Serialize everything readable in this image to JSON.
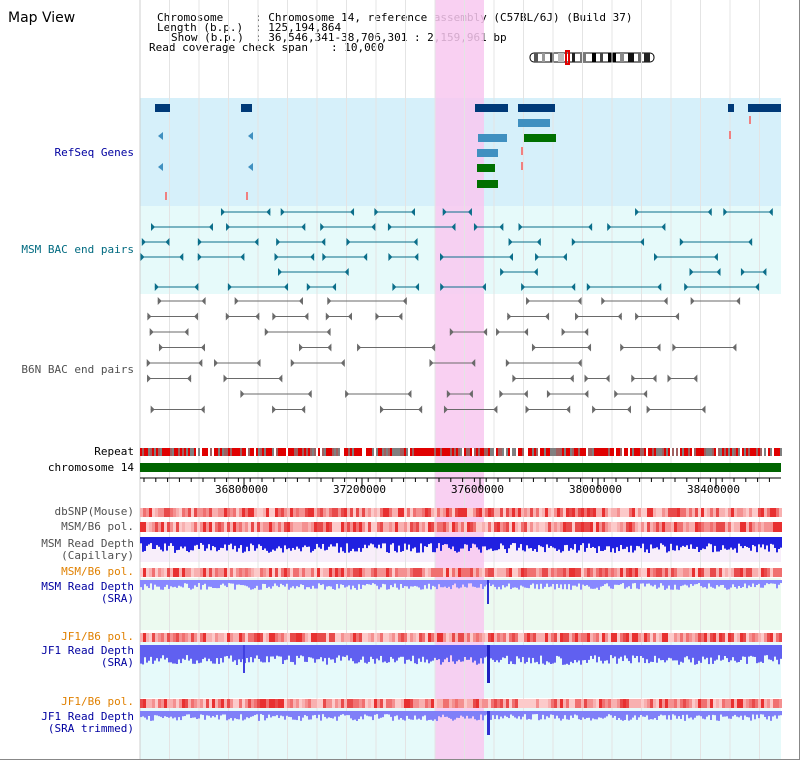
{
  "title": "Map View",
  "info": {
    "chromosome_label": "Chromosome",
    "chromosome_value": ": Chromosome 14, reference assembly (C57BL/6J) (Build 37)",
    "length_label": "Length (b.p.)",
    "length_value": ": 125,194,864",
    "show_label": "Show (b.p.)",
    "show_value": ": 36,546,341-38,706,301 : 2,159,961 bp",
    "coverage_label": "Read coverage check span",
    "coverage_value": ": 10,000"
  },
  "tracks": {
    "refseq": "RefSeq Genes",
    "msm_bac": "MSM BAC end pairs",
    "b6n_bac": "B6N BAC end pairs",
    "repeat": "Repeat",
    "chromosome": "chromosome 14",
    "dbsnp": "dbSNP(Mouse)",
    "msm_b6_pol": "MSM/B6 pol.",
    "msm_depth_cap_1": "MSM Read Depth",
    "msm_depth_cap_2": "(Capillary)",
    "msm_b6_pol_2": "MSM/B6 pol.",
    "msm_depth_sra_1": "MSM Read Depth",
    "msm_depth_sra_2": "(SRA)",
    "jf1_b6_pol": "JF1/B6 pol.",
    "jf1_depth_sra_1": "JF1 Read Depth",
    "jf1_depth_sra_2": "(SRA)",
    "jf1_b6_pol_2": "JF1/B6 pol.",
    "jf1_depth_trim_1": "JF1 Read Depth",
    "jf1_depth_trim_2": "(SRA trimmed)"
  },
  "axis": {
    "ticks": [
      "36800000",
      "37200000",
      "37600000",
      "38000000",
      "38400000"
    ]
  },
  "colors": {
    "refseq_bg": "#d6f0fa",
    "msm_bg": "#e6fafa",
    "highlight": "#f8c8f0",
    "label_blue": "#0000a0",
    "label_teal": "#006a80",
    "label_gray": "#505050",
    "label_orange": "#e08000",
    "chromosome_green": "#006400"
  }
}
